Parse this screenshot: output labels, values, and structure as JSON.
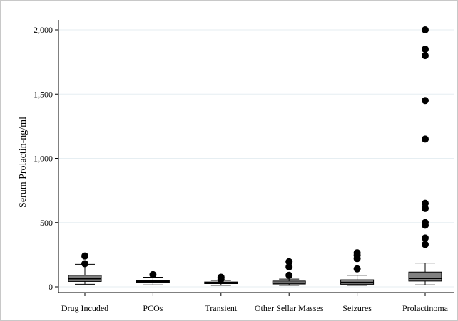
{
  "chart_data": {
    "type": "box",
    "title": "",
    "xlabel": "",
    "ylabel": "Serum Prolactin-ng/ml",
    "ylim": [
      0,
      2000
    ],
    "yticks": [
      0,
      500,
      1000,
      1500,
      2000
    ],
    "ytick_labels": [
      "0",
      "500",
      "1,000",
      "1,500",
      "2,000"
    ],
    "grid": true,
    "colors": {
      "box_fill": "#808080",
      "grid": "#e6eef2",
      "outlier": "#000000",
      "axis": "#000000"
    },
    "categories": [
      "Drug Incuded",
      "PCOs",
      "Transient",
      "Other Sellar Masses",
      "Seizures",
      "Prolactinoma"
    ],
    "boxes": [
      {
        "category": "Drug Incuded",
        "whisker_low": 20,
        "q1": 42,
        "median": 62,
        "q3": 90,
        "whisker_high": 175,
        "outliers": [
          180,
          240
        ]
      },
      {
        "category": "PCOs",
        "whisker_low": 15,
        "q1": 33,
        "median": 40,
        "q3": 47,
        "whisker_high": 75,
        "outliers": [
          95
        ]
      },
      {
        "category": "Transient",
        "whisker_low": 12,
        "q1": 25,
        "median": 32,
        "q3": 38,
        "whisker_high": 50,
        "outliers": [
          60,
          75
        ]
      },
      {
        "category": "Other Sellar Masses",
        "whisker_low": 12,
        "q1": 22,
        "median": 30,
        "q3": 45,
        "whisker_high": 60,
        "outliers": [
          90,
          155,
          195
        ]
      },
      {
        "category": "Seizures",
        "whisker_low": 12,
        "q1": 20,
        "median": 35,
        "q3": 55,
        "whisker_high": 90,
        "outliers": [
          140,
          220,
          245,
          265
        ]
      },
      {
        "category": "Prolactinoma",
        "whisker_low": 15,
        "q1": 45,
        "median": 65,
        "q3": 115,
        "whisker_high": 185,
        "outliers": [
          330,
          380,
          480,
          500,
          610,
          650,
          1150,
          1450,
          1800,
          1850,
          2000
        ]
      }
    ]
  }
}
